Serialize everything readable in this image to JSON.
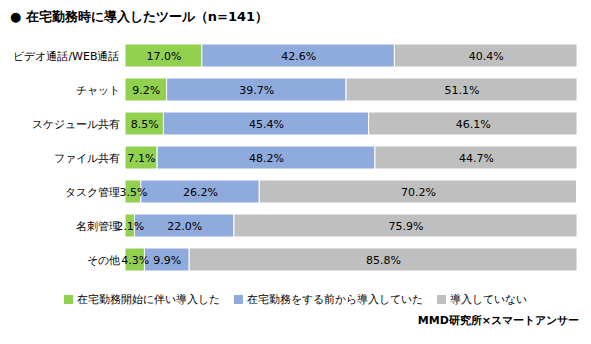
{
  "chart_data": {
    "type": "bar",
    "title": "● 在宅勤務時に導入したツール（n=141）",
    "caption": "MMD研究所×スマートアンサー",
    "orientation": "horizontal",
    "stacked": true,
    "data_labels": true,
    "tick_labels": "y",
    "legend": "bottom",
    "grid": false,
    "xlim": [
      0,
      100
    ],
    "xticks": [],
    "categories": [
      "ビデオ通話/WEB通話",
      "チャット",
      "スケジュール共有",
      "ファイル共有",
      "タスク管理",
      "名刺管理",
      "その他"
    ],
    "series": [
      {
        "name": "在宅勤務開始に伴い導入した",
        "color": "#92d050",
        "values": [
          17.0,
          9.2,
          8.5,
          7.1,
          3.5,
          2.1,
          4.3
        ],
        "value_labels": [
          "17.0%",
          "9.2%",
          "8.5%",
          "7.1%",
          "3.5%",
          "2.1%",
          "4.3%"
        ]
      },
      {
        "name": "在宅勤務をする前から導入していた",
        "color": "#8faadc",
        "values": [
          42.6,
          39.7,
          45.4,
          48.2,
          26.2,
          22.0,
          9.9
        ],
        "value_labels": [
          "42.6%",
          "39.7%",
          "45.4%",
          "48.2%",
          "26.2%",
          "22.0%",
          "9.9%"
        ]
      },
      {
        "name": "導入していない",
        "color": "#bfbfbf",
        "values": [
          40.4,
          51.1,
          46.1,
          44.7,
          70.2,
          75.9,
          85.8
        ],
        "value_labels": [
          "40.4%",
          "51.1%",
          "46.1%",
          "44.7%",
          "70.2%",
          "75.9%",
          "85.8%"
        ]
      }
    ]
  }
}
